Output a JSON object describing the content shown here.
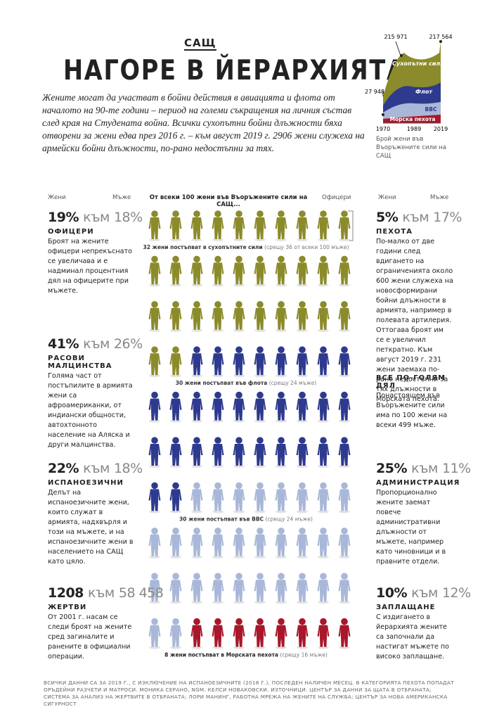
{
  "header": {
    "kicker": "САЩ",
    "title": "НАГОРЕ В ЙЕРАРХИЯТА",
    "intro": "Жените могат да участват в бойни действия в авиацията и флота от началото на 90-те години – период на големи съкращения на личния състав след края на Студената война. Всички сухопътни бойни длъжности бяха отворени за жени едва през 2016 г. – към август 2019 г. 2906 жени служеха на армейски бойни длъжности, по-рано недостъпни за тях."
  },
  "mini_chart": {
    "start_label": "27 948",
    "peak_label": "215 971",
    "end_label": "217 564",
    "x_labels": [
      "1970",
      "1989",
      "2019"
    ],
    "series": [
      "Сухопътни сили",
      "Флот",
      "ВВС",
      "Морска пехота"
    ],
    "caption": "Брой жени във Въоръжените сили на САЩ"
  },
  "legend": {
    "women": "Жени",
    "men": "Мъже",
    "center": "От всеки 100 жени във Въоръжените сили на САЩ...",
    "officers": "Офицери"
  },
  "pictogram": {
    "groups": [
      {
        "count": 32,
        "color": "#8b8b2b",
        "label": "32 жени постъпват в сухопътните сили",
        "note": "(срещу 36 от всеки 100 мъже)"
      },
      {
        "count": 30,
        "color": "#2e3a8e",
        "label": "30 жени постъпват във флота",
        "note": "(срещу 24 мъже)"
      },
      {
        "count": 30,
        "color": "#a9b7d8",
        "label": "30 жени постъпват във ВВС",
        "note": "(срещу 24 мъже)"
      },
      {
        "count": 8,
        "color": "#a8172b",
        "label": "8 жени постъпват в Морската пехота",
        "note": "(срещу 16 мъже)"
      }
    ]
  },
  "left": [
    {
      "women": "19%",
      "sep": "към",
      "men": "18%",
      "heading": "ОФИЦЕРИ",
      "text": "Броят на жените офицери непрекъснато се увеличава и е надминал процентния дял на офицерите при мъжете."
    },
    {
      "women": "41%",
      "sep": "към",
      "men": "26%",
      "heading": "РАСОВИ МАЛЦИНСТВА",
      "text": "Голяма част от постъпилите в армията жени са афроамериканки, от индиански общности, автохтонното население на Аляска и други малцинства."
    },
    {
      "women": "22%",
      "sep": "към",
      "men": "18%",
      "heading": "ИСПАНОЕЗИЧНИ",
      "text": "Делът на испаноезичните жени, които служат в армията, надхвърля и този на мъжете, и на испаноезичните жени в населението на САЩ като цяло."
    },
    {
      "women": "1208",
      "sep": "към",
      "men": "58 458",
      "heading": "ЖЕРТВИ",
      "text": "От 2001 г. насам се следи броят на жените сред загиналите и ранените в официални операции."
    }
  ],
  "right": [
    {
      "women": "5%",
      "sep": "към",
      "men": "17%",
      "heading": "ПЕХОТА",
      "text": "По-малко от две години след вдигането на ограниченията около 600 жени служеха на новосформирани бойни длъжности в армията, например в полевата артилерия. Оттогава броят им се е увеличил петкратно. Към август 2019 г. 231 жени заемаха по-рано недостъпни за тях длъжности в Морската пехота."
    },
    {
      "women": "25%",
      "sep": "към",
      "men": "11%",
      "heading": "АДМИНИСТРАЦИЯ",
      "text": "Пропорционално жените заемат повече административни длъжности от мъжете, например като чиновници и в правните отдели."
    },
    {
      "women": "10%",
      "sep": "към",
      "men": "12%",
      "heading": "ЗАПЛАЩАНЕ",
      "text": "С издигането в йерархията жените са започнали да настигат мъжете по високо заплащане."
    }
  ],
  "share": {
    "heading": "ВСЕ ПО-ГОЛЯМ ДЯЛ",
    "text": "Понастоящем във Въоръжените сили има по 100 жени на всеки 499 мъже."
  },
  "footer": "ВСИЧКИ ДАННИ СА ЗА 2019 Г., С ИЗКЛЮЧЕНИЕ НА ИСПАНОЕЗИЧНИТЕ (2018 Г.), ПОСЛЕДЕН НАЛИЧЕН МЕСЕЦ. В КАТЕГОРИЯТА ПЕХОТА ПОПАДАТ ОРЪДЕЙНИ РАЗЧЕТИ И МАТРОСИ. МОНИКА СЕРАНО, NGM. КЕЛСИ НОВАКОВСКИ. ИЗТОЧНИЦИ: ЦЕНТЪР ЗА ДАННИ ЗА ЩАТА В ОТБРАНАТА; СИСТЕМА ЗА АНАЛИЗ НА ЖЕРТВИТЕ В ОТБРАНАТА; ЛОРИ МАНИНГ, РАБОТНА МРЕЖА НА ЖЕНИТЕ НА СЛУЖБА; ЦЕНТЪР ЗА НОВА АМЕРИКАНСКА СИГУРНОСТ"
}
